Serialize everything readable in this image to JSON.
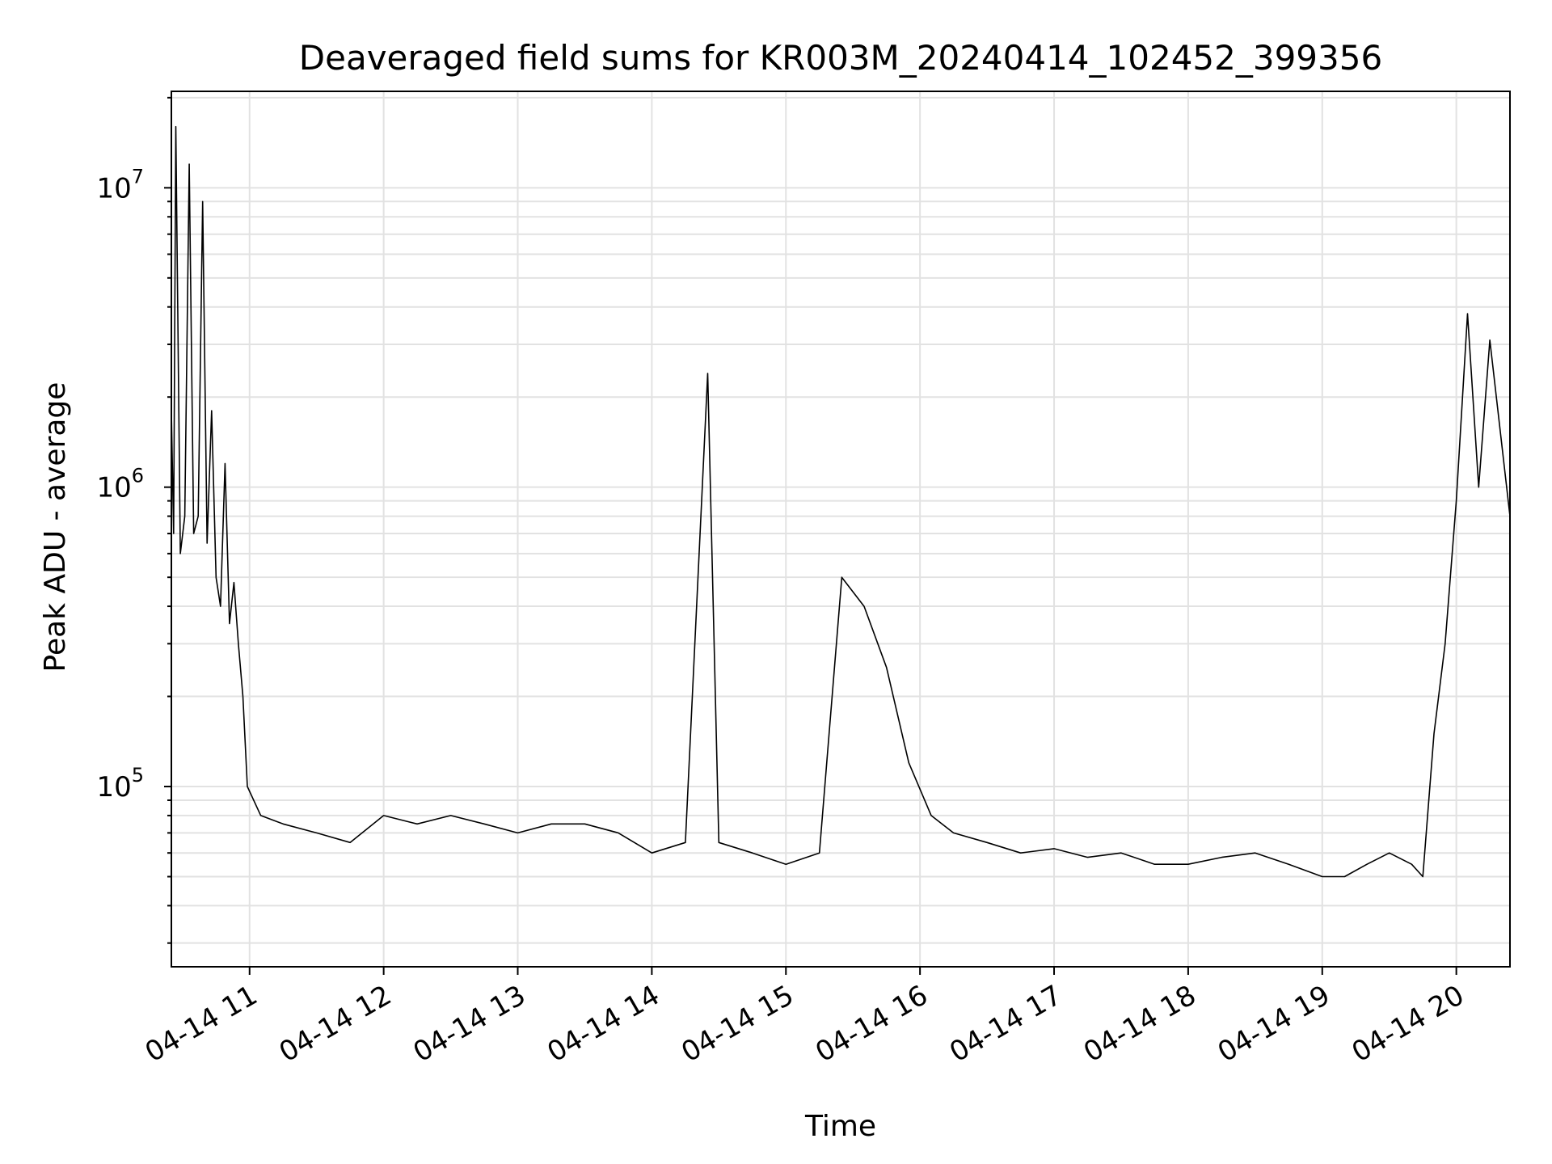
{
  "chart_data": {
    "type": "line",
    "title": "Deaveraged field sums for KR003M_20240414_102452_399356",
    "xlabel": "Time",
    "ylabel": "Peak ADU - average",
    "yscale": "log",
    "ylim": [
      25000,
      21000000
    ],
    "xlim": [
      "04-14 10:25",
      "04-14 20:24"
    ],
    "grid": true,
    "line_color": "#000000",
    "x_ticks": [
      "04-14 11",
      "04-14 12",
      "04-14 13",
      "04-14 14",
      "04-14 15",
      "04-14 16",
      "04-14 17",
      "04-14 18",
      "04-14 19",
      "04-14 20"
    ],
    "y_ticks": [
      {
        "base": "10",
        "exp": "5",
        "value": 100000
      },
      {
        "base": "10",
        "exp": "6",
        "value": 1000000
      },
      {
        "base": "10",
        "exp": "7",
        "value": 10000000
      }
    ],
    "series": [
      {
        "x": [
          "04-14 10:25",
          "04-14 10:26",
          "04-14 10:27",
          "04-14 10:29",
          "04-14 10:31",
          "04-14 10:33",
          "04-14 10:35",
          "04-14 10:37",
          "04-14 10:39",
          "04-14 10:41",
          "04-14 10:43",
          "04-14 10:45",
          "04-14 10:47",
          "04-14 10:49",
          "04-14 10:51",
          "04-14 10:53",
          "04-14 10:55",
          "04-14 10:57",
          "04-14 10:59",
          "04-14 11:05",
          "04-14 11:15",
          "04-14 11:30",
          "04-14 11:45",
          "04-14 12:00",
          "04-14 12:15",
          "04-14 12:30",
          "04-14 12:45",
          "04-14 13:00",
          "04-14 13:15",
          "04-14 13:30",
          "04-14 13:45",
          "04-14 14:00",
          "04-14 14:15",
          "04-14 14:25",
          "04-14 14:30",
          "04-14 14:45",
          "04-14 15:00",
          "04-14 15:15",
          "04-14 15:25",
          "04-14 15:35",
          "04-14 15:45",
          "04-14 15:55",
          "04-14 16:05",
          "04-14 16:15",
          "04-14 16:30",
          "04-14 16:45",
          "04-14 17:00",
          "04-14 17:15",
          "04-14 17:30",
          "04-14 17:45",
          "04-14 18:00",
          "04-14 18:15",
          "04-14 18:30",
          "04-14 18:45",
          "04-14 19:00",
          "04-14 19:10",
          "04-14 19:20",
          "04-14 19:30",
          "04-14 19:40",
          "04-14 19:45",
          "04-14 19:50",
          "04-14 19:55",
          "04-14 20:00",
          "04-14 20:05",
          "04-14 20:10",
          "04-14 20:15",
          "04-14 20:24"
        ],
        "y": [
          1800000,
          700000,
          16000000,
          600000,
          800000,
          12000000,
          700000,
          800000,
          9000000,
          650000,
          1800000,
          500000,
          400000,
          1200000,
          350000,
          480000,
          300000,
          200000,
          100000,
          80000,
          75000,
          70000,
          65000,
          80000,
          75000,
          80000,
          75000,
          70000,
          75000,
          75000,
          70000,
          60000,
          65000,
          2400000,
          65000,
          60000,
          55000,
          60000,
          500000,
          400000,
          250000,
          120000,
          80000,
          70000,
          65000,
          60000,
          62000,
          58000,
          60000,
          55000,
          55000,
          58000,
          60000,
          55000,
          50000,
          50000,
          55000,
          60000,
          55000,
          50000,
          150000,
          300000,
          900000,
          3800000,
          1000000,
          3100000,
          800000
        ]
      }
    ]
  }
}
